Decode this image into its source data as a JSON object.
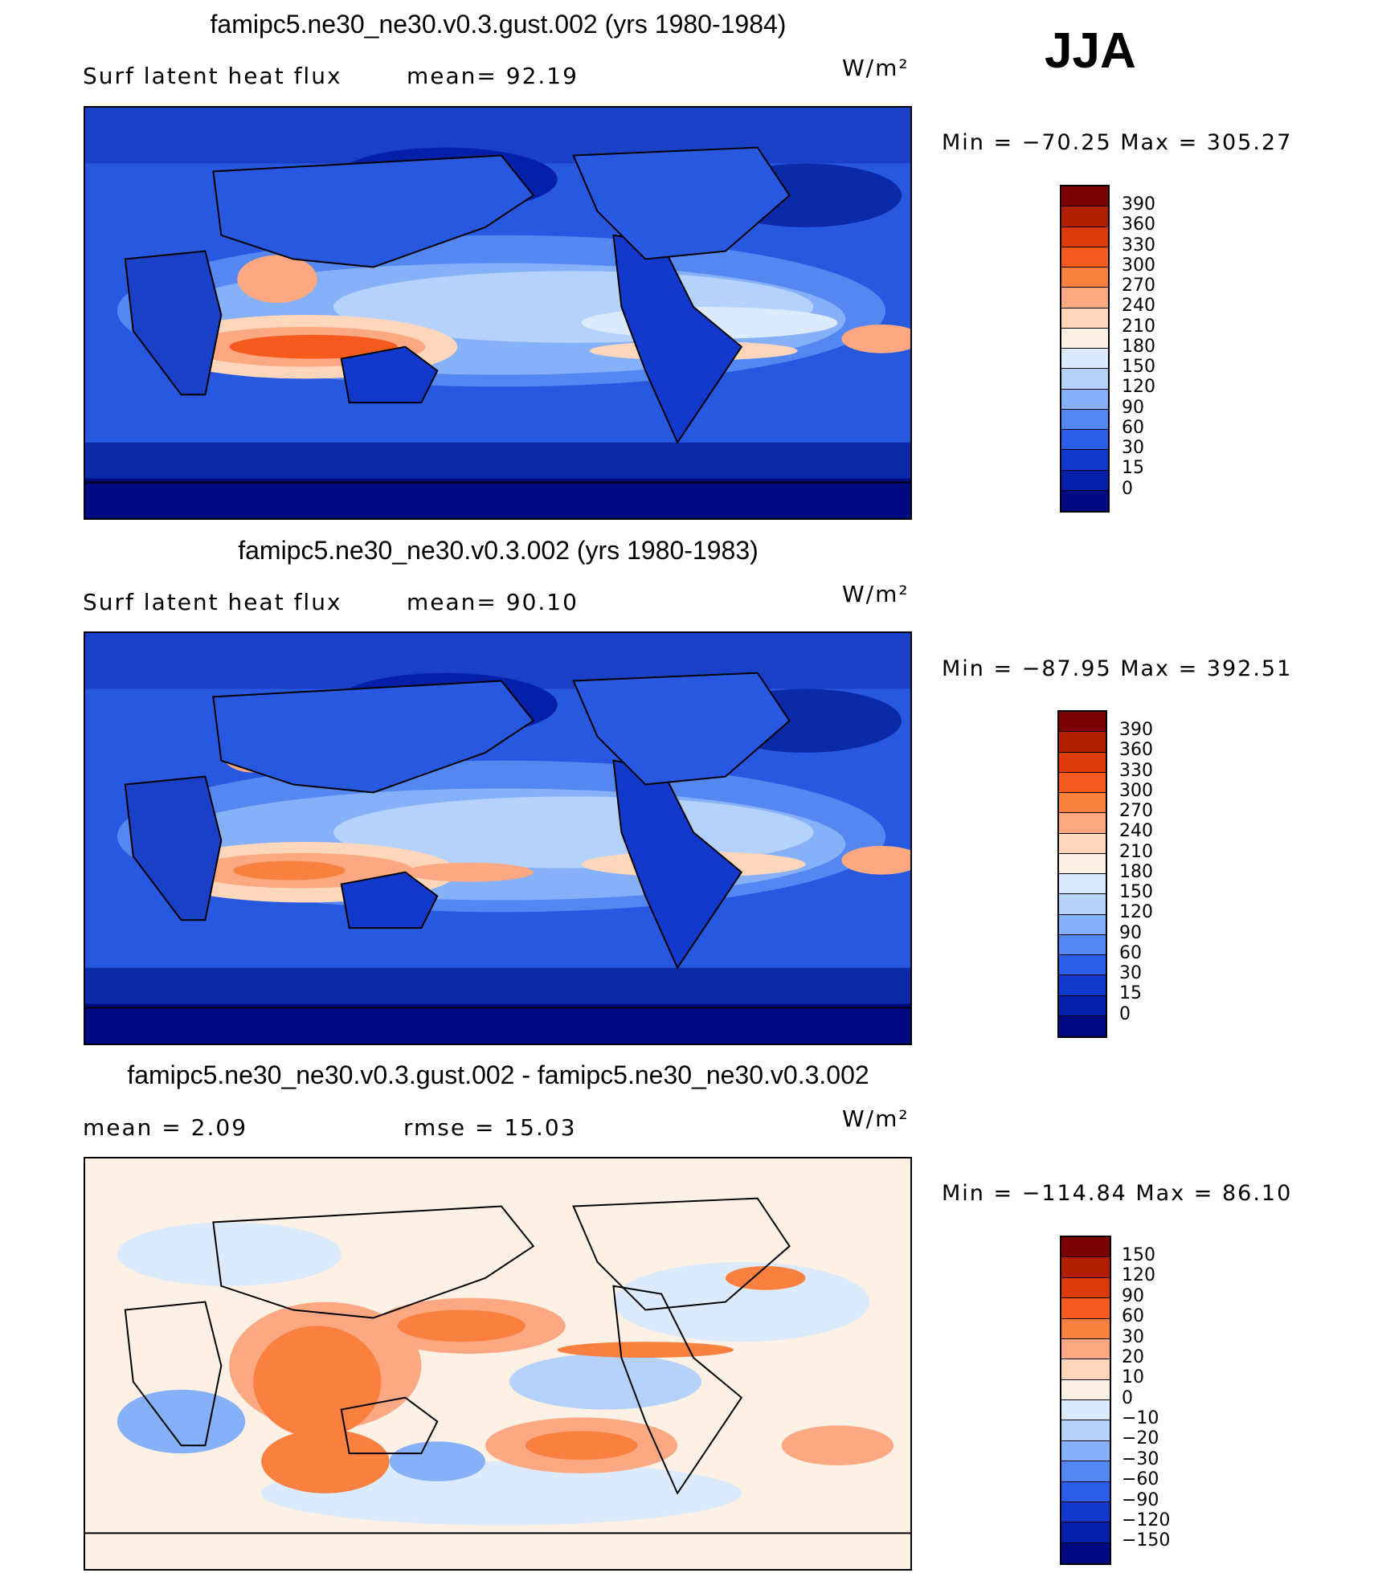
{
  "season": "JJA",
  "panels": [
    {
      "id": "gust",
      "title": "famipc5.ne30_ne30.v0.3.gust.002 (yrs 1980-1984)",
      "left_label": "Surf  latent  heat  flux",
      "mid_label": "mean=   92.19",
      "units": "W/m²",
      "minmax": "Min  =  −70.25  Max  =  305.27",
      "field": {
        "variable": "Surf latent heat flux",
        "mean": 92.19,
        "min": -70.25,
        "max": 305.27
      },
      "colorbar": {
        "labels": [
          "390",
          "360",
          "330",
          "300",
          "270",
          "240",
          "210",
          "180",
          "150",
          "120",
          "90",
          "60",
          "30",
          "15",
          "0"
        ],
        "colors": [
          "#7a0000",
          "#b21e00",
          "#dc3a08",
          "#f45a1e",
          "#fa8040",
          "#fca882",
          "#fdd6bc",
          "#fdf0e4",
          "#dbeafc",
          "#b4d2fb",
          "#86b0f8",
          "#5587f2",
          "#2b5ee8",
          "#1238cc",
          "#0520a8",
          "#000a80"
        ]
      }
    },
    {
      "id": "control",
      "title": "famipc5.ne30_ne30.v0.3.002 (yrs 1980-1983)",
      "left_label": "Surf  latent  heat  flux",
      "mid_label": "mean=   90.10",
      "units": "W/m²",
      "minmax": "Min  =  −87.95  Max  =  392.51",
      "field": {
        "variable": "Surf latent heat flux",
        "mean": 90.1,
        "min": -87.95,
        "max": 392.51
      },
      "colorbar": {
        "labels": [
          "390",
          "360",
          "330",
          "300",
          "270",
          "240",
          "210",
          "180",
          "150",
          "120",
          "90",
          "60",
          "30",
          "15",
          "0"
        ],
        "colors": [
          "#7a0000",
          "#b21e00",
          "#dc3a08",
          "#f45a1e",
          "#fa8040",
          "#fca882",
          "#fdd6bc",
          "#fdf0e4",
          "#dbeafc",
          "#b4d2fb",
          "#86b0f8",
          "#5587f2",
          "#2b5ee8",
          "#1238cc",
          "#0520a8",
          "#000a80"
        ]
      }
    },
    {
      "id": "diff",
      "title": "famipc5.ne30_ne30.v0.3.gust.002 - famipc5.ne30_ne30.v0.3.002",
      "left_label": "mean  =     2.09",
      "mid_label": "rmse  =    15.03",
      "units": "W/m²",
      "minmax": "Min  =  −114.84  Max  =    86.10",
      "field": {
        "mean": 2.09,
        "rmse": 15.03,
        "min": -114.84,
        "max": 86.1
      },
      "colorbar": {
        "labels": [
          "150",
          "120",
          "90",
          "60",
          "30",
          "20",
          "10",
          "0",
          "−10",
          "−20",
          "−30",
          "−60",
          "−90",
          "−120",
          "−150"
        ],
        "colors": [
          "#7a0000",
          "#b21e00",
          "#dc3a08",
          "#f45a1e",
          "#fa8040",
          "#fca882",
          "#fdd6bc",
          "#fdf0e4",
          "#dbeafc",
          "#b4d2fb",
          "#86b0f8",
          "#5587f2",
          "#2b5ee8",
          "#1238cc",
          "#0520a8",
          "#000a80"
        ]
      }
    }
  ]
}
